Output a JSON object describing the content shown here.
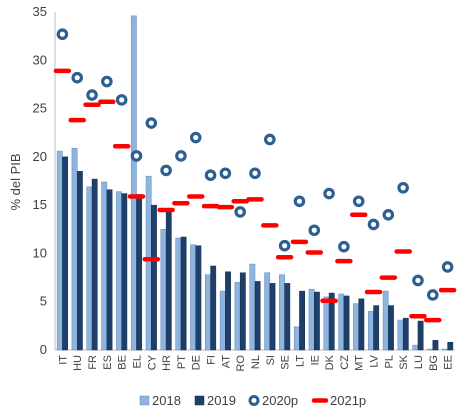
{
  "chart_data": {
    "type": "bar",
    "title": "",
    "xlabel": "",
    "ylabel": "% del PIB",
    "ylim": [
      0,
      35
    ],
    "yticks": [
      0,
      5,
      10,
      15,
      20,
      25,
      30,
      35
    ],
    "grid": false,
    "legend_position": "bottom",
    "categories": [
      "IT",
      "HU",
      "FR",
      "ES",
      "BE",
      "EL",
      "CY",
      "HR",
      "PT",
      "DE",
      "FI",
      "AT",
      "RO",
      "NL",
      "SI",
      "SE",
      "LT",
      "IE",
      "DK",
      "CZ",
      "MT",
      "LV",
      "PL",
      "SK",
      "LU",
      "BG",
      "EE"
    ],
    "series": [
      {
        "name": "2018",
        "kind": "bar",
        "color": "#8fb4de",
        "values": [
          20.6,
          20.9,
          16.9,
          17.4,
          16.4,
          34.6,
          18.0,
          12.5,
          11.6,
          10.9,
          7.8,
          6.1,
          7.0,
          8.9,
          8.0,
          7.8,
          2.4,
          6.3,
          5.5,
          5.8,
          4.8,
          4.0,
          6.1,
          3.1,
          0.5,
          0.1,
          0.1
        ]
      },
      {
        "name": "2019",
        "kind": "bar",
        "color": "#1f3f6b",
        "values": [
          20.0,
          18.5,
          17.7,
          16.6,
          16.2,
          16.1,
          15.0,
          14.5,
          11.7,
          10.8,
          8.7,
          8.1,
          8.0,
          7.1,
          6.9,
          6.9,
          6.1,
          6.0,
          5.9,
          5.6,
          5.3,
          4.6,
          4.6,
          3.3,
          3.0,
          1.0,
          0.8
        ]
      },
      {
        "name": "2020p",
        "kind": "ring",
        "color": "#2e5f93",
        "values": [
          32.7,
          28.2,
          26.4,
          27.8,
          25.9,
          20.1,
          23.5,
          18.6,
          20.1,
          22.0,
          18.1,
          18.3,
          14.3,
          18.3,
          21.8,
          10.8,
          15.4,
          12.4,
          16.2,
          10.7,
          15.4,
          13.0,
          14.0,
          16.8,
          7.2,
          5.7,
          8.6
        ]
      },
      {
        "name": "2021p",
        "kind": "dash",
        "color": "#ff0000",
        "values": [
          28.9,
          23.8,
          25.4,
          25.7,
          21.1,
          15.9,
          9.4,
          14.5,
          15.2,
          15.9,
          14.9,
          14.8,
          15.4,
          15.6,
          12.9,
          9.6,
          11.2,
          10.1,
          5.1,
          9.2,
          14.0,
          6.0,
          7.5,
          10.2,
          3.5,
          3.1,
          6.2
        ]
      }
    ]
  }
}
